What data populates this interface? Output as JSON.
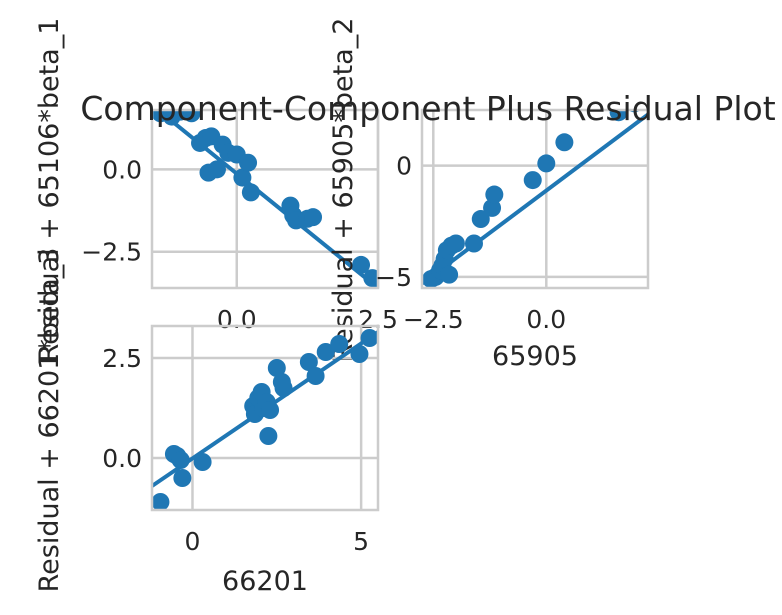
{
  "figure": {
    "title": "Component-Component Plus Residual Plot"
  },
  "colors": {
    "points": "#1f77b4",
    "line": "#1f77b4",
    "grid": "#cccccc",
    "text": "#262626"
  },
  "chart_data": [
    {
      "type": "scatter",
      "xlabel": "",
      "ylabel": "Residual + 65106*beta_1",
      "xlim": [
        -1.5,
        2.5
      ],
      "ylim": [
        -3.6,
        1.8
      ],
      "x_ticks": [
        0.0,
        2.5
      ],
      "x_tick_labels": [
        "0.0",
        "2.5"
      ],
      "y_ticks": [
        -2.5,
        0.0
      ],
      "y_tick_labels": [
        "−2.5",
        "0.0"
      ],
      "grid": true,
      "fit_line": {
        "x": [
          -1.5,
          2.5
        ],
        "y": [
          1.95,
          -3.6
        ]
      },
      "x": [
        -1.35,
        -1.15,
        -1.0,
        -0.8,
        -0.65,
        -0.55,
        -0.5,
        -0.45,
        -0.35,
        -0.25,
        -0.15,
        0.0,
        0.1,
        0.2,
        0.25,
        0.95,
        1.0,
        1.05,
        1.25,
        1.35,
        2.2,
        2.4
      ],
      "y": [
        1.7,
        1.6,
        1.75,
        1.7,
        0.8,
        0.95,
        -0.1,
        1.0,
        0.0,
        0.75,
        0.5,
        0.45,
        -0.25,
        0.2,
        -0.7,
        -1.1,
        -1.4,
        -1.55,
        -1.5,
        -1.45,
        -2.9,
        -3.3
      ]
    },
    {
      "type": "scatter",
      "xlabel": "65905",
      "ylabel": "Residual + 65905*beta_2",
      "xlim": [
        -2.75,
        2.25
      ],
      "ylim": [
        -5.5,
        2.5
      ],
      "x_ticks": [
        -2.5,
        0.0
      ],
      "x_tick_labels": [
        "−2.5",
        "0.0"
      ],
      "y_ticks": [
        -5,
        0
      ],
      "y_tick_labels": [
        "−5",
        "0"
      ],
      "grid": true,
      "fit_line": {
        "x": [
          -2.75,
          2.25
        ],
        "y": [
          -5.3,
          2.3
        ]
      },
      "x": [
        -2.55,
        -2.45,
        -2.35,
        -2.3,
        -2.25,
        -2.2,
        -2.15,
        -2.1,
        -2.0,
        -1.6,
        -1.45,
        -1.2,
        -1.15,
        -0.3,
        0.0,
        0.4,
        1.6,
        1.95
      ],
      "y": [
        -5.1,
        -5.0,
        -4.7,
        -4.5,
        -4.2,
        -3.8,
        -4.9,
        -3.6,
        -3.5,
        -3.5,
        -2.4,
        -1.9,
        -1.3,
        -0.65,
        0.1,
        1.05,
        2.4,
        2.8
      ]
    },
    {
      "type": "scatter",
      "xlabel": "66201",
      "ylabel": "Residual + 66201*beta_3",
      "xlim": [
        -1.2,
        5.5
      ],
      "ylim": [
        -1.3,
        3.3
      ],
      "x_ticks": [
        0,
        5
      ],
      "x_tick_labels": [
        "0",
        "5"
      ],
      "y_ticks": [
        0.0,
        2.5
      ],
      "y_tick_labels": [
        "0.0",
        "2.5"
      ],
      "grid": true,
      "fit_line": {
        "x": [
          -1.2,
          5.5
        ],
        "y": [
          -0.7,
          3.15
        ]
      },
      "x": [
        -0.95,
        -0.55,
        -0.45,
        -0.35,
        -0.3,
        0.3,
        1.8,
        1.85,
        1.95,
        2.05,
        2.1,
        2.2,
        2.25,
        2.3,
        2.5,
        2.65,
        2.7,
        3.45,
        3.65,
        3.95,
        4.35,
        4.95,
        5.25
      ],
      "y": [
        -1.1,
        0.1,
        0.05,
        -0.05,
        -0.5,
        -0.1,
        1.3,
        1.1,
        1.5,
        1.65,
        1.25,
        1.4,
        0.55,
        1.2,
        2.25,
        1.9,
        1.75,
        2.4,
        2.05,
        2.65,
        2.85,
        2.6,
        3.0
      ]
    }
  ]
}
